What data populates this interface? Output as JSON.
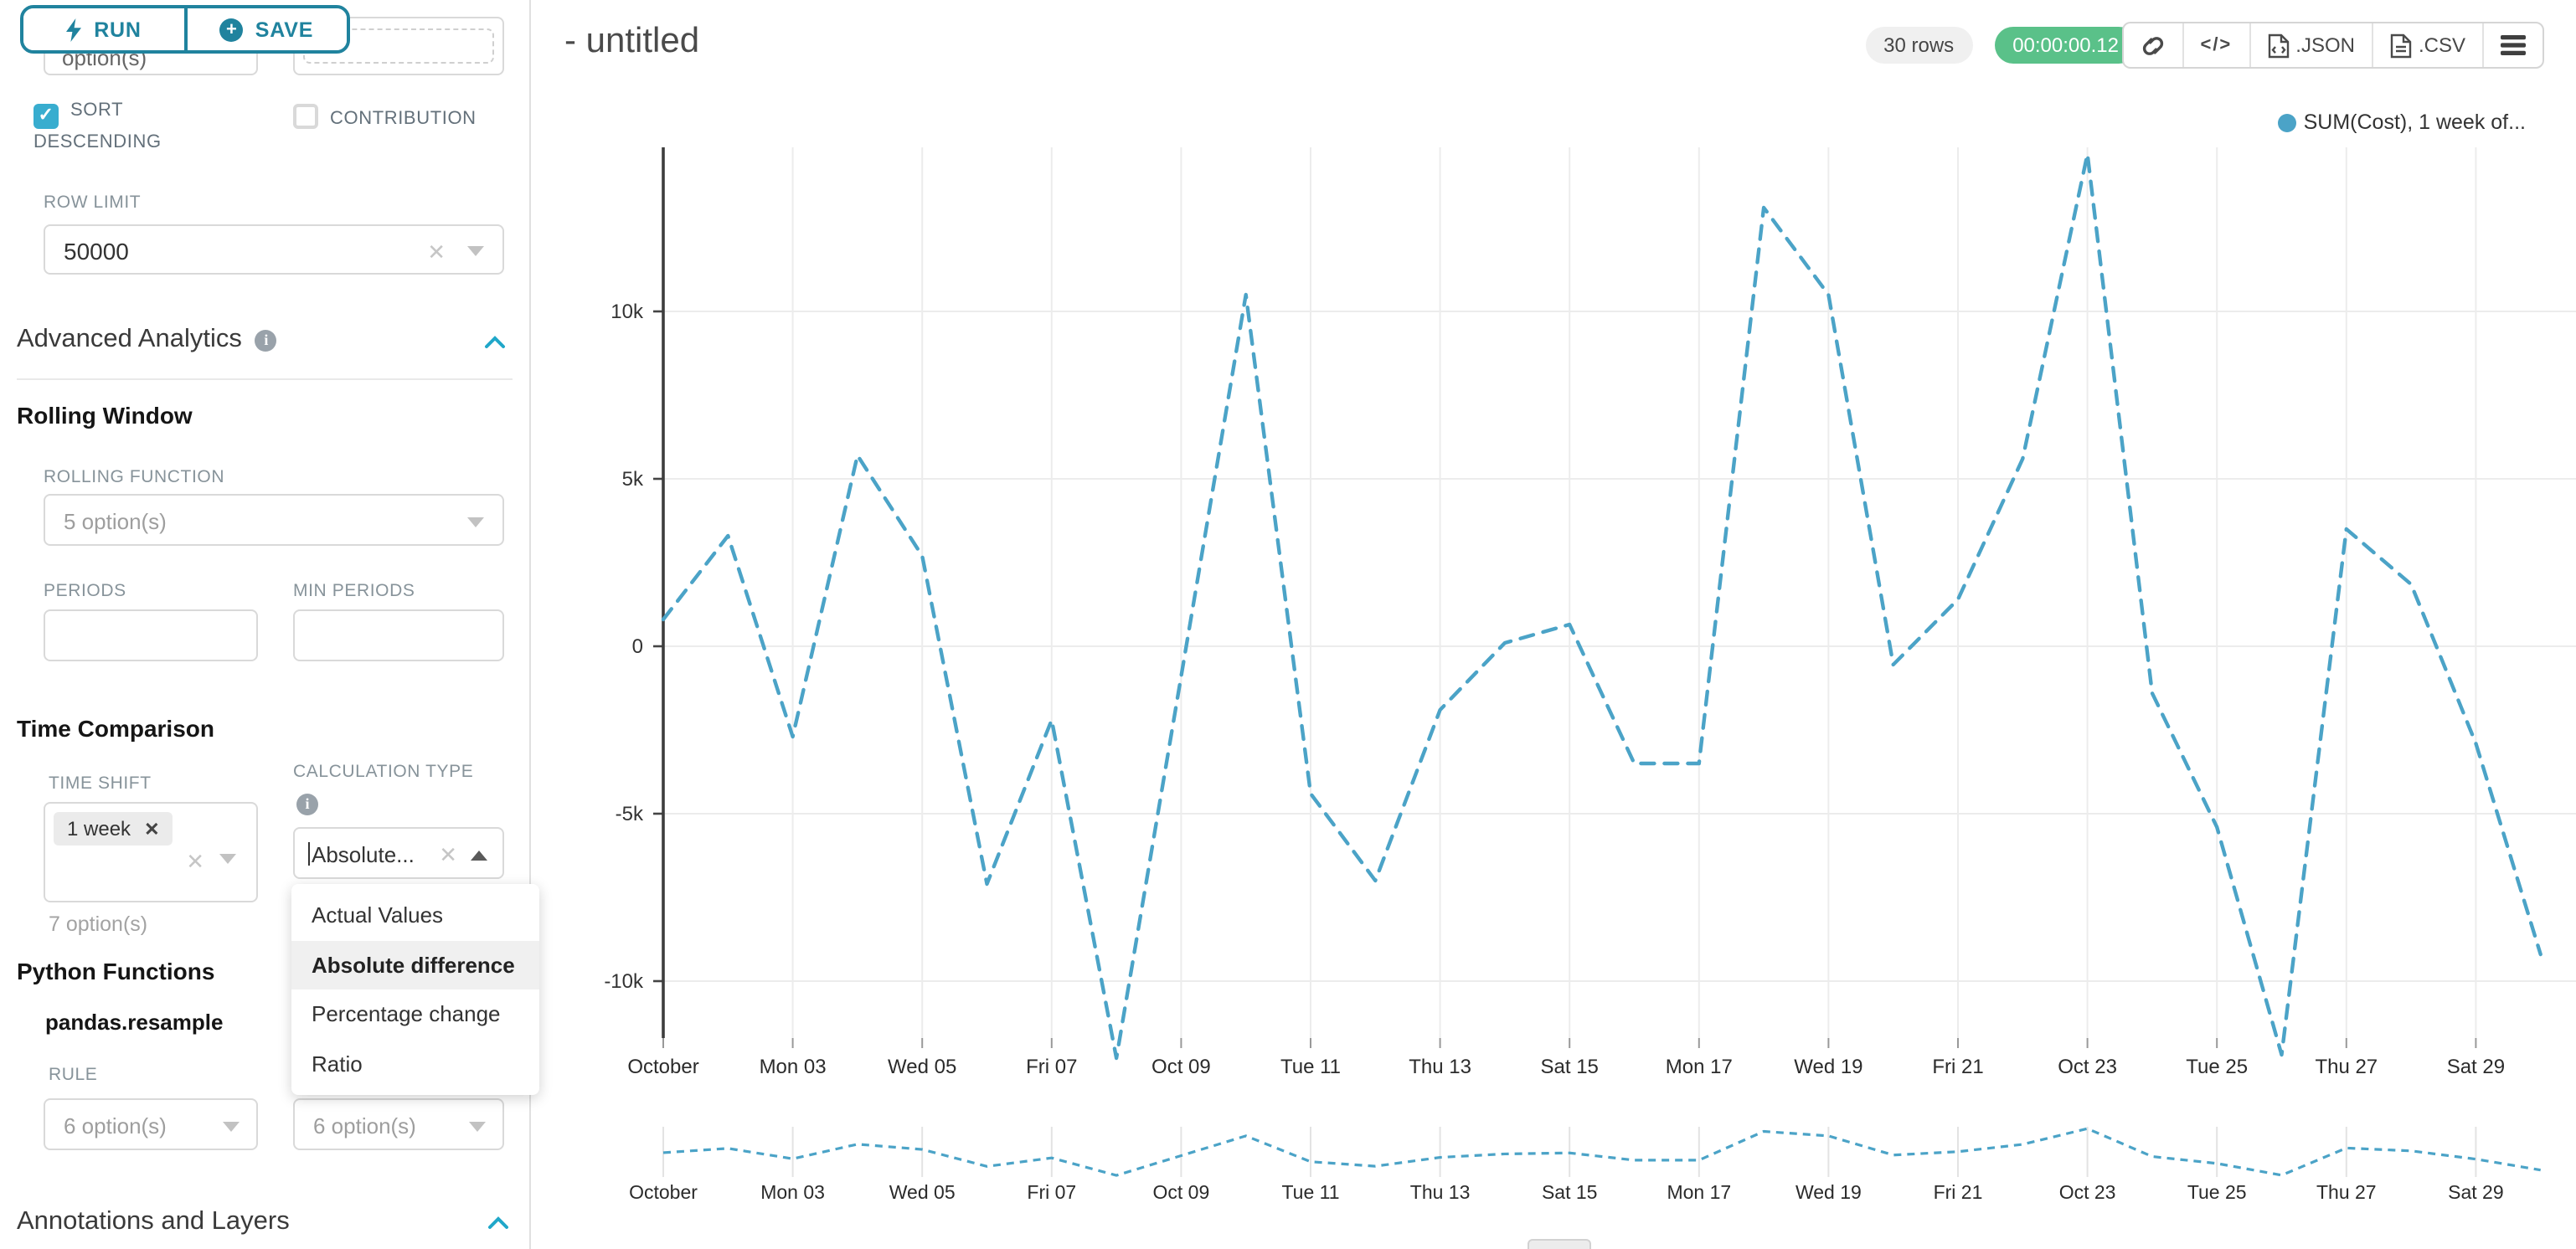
{
  "accent_color": "#20a7c9",
  "run_save": {
    "run_label": "RUN",
    "save_label": "SAVE"
  },
  "top_fields": {
    "left_partial_value": "option(s)"
  },
  "checkboxes": {
    "sort_descending_label": "SORT DESCENDING",
    "contribution_label": "CONTRIBUTION"
  },
  "row_limit": {
    "label": "ROW LIMIT",
    "value": "50000"
  },
  "advanced_analytics": {
    "title": "Advanced Analytics"
  },
  "rolling_window": {
    "title": "Rolling Window",
    "rolling_function_label": "ROLLING FUNCTION",
    "rolling_function_placeholder": "5 option(s)",
    "periods_label": "PERIODS",
    "min_periods_label": "MIN PERIODS"
  },
  "time_comparison": {
    "title": "Time Comparison",
    "time_shift_label": "TIME SHIFT",
    "time_shift_tag": "1 week",
    "time_shift_hint": "7 option(s)",
    "calculation_type_label": "CALCULATION TYPE",
    "calculation_type_value": "Absolute...",
    "options": [
      "Actual Values",
      "Absolute difference",
      "Percentage change",
      "Ratio"
    ],
    "selected_option": "Absolute difference"
  },
  "python_functions": {
    "title": "Python Functions",
    "function_name": "pandas.resample",
    "rule_label": "RULE",
    "rule_placeholder": "6 option(s)",
    "method_placeholder": "6 option(s)"
  },
  "annotations": {
    "title": "Annotations and Layers"
  },
  "header": {
    "title": "- untitled",
    "rows_badge": "30 rows",
    "timer_badge": "00:00:00.12",
    "json_label": ".JSON",
    "csv_label": ".CSV"
  },
  "chart_data": {
    "type": "line",
    "line_style": "dashed",
    "title": "",
    "legend": {
      "label": "SUM(Cost), 1 week of...",
      "position": "top-right"
    },
    "series": [
      {
        "name": "SUM(Cost), 1 week offset",
        "color": "#4BA3C7",
        "x_days": [
          1,
          2,
          3,
          4,
          5,
          6,
          7,
          8,
          9,
          10,
          11,
          12,
          13,
          14,
          15,
          16,
          17,
          18,
          19,
          20,
          21,
          22,
          23,
          24,
          25,
          26,
          27,
          28,
          29,
          30
        ],
        "values": [
          800,
          3300,
          -2700,
          5700,
          2700,
          -7100,
          -2200,
          -12300,
          -900,
          10500,
          -4400,
          -7000,
          -1900,
          100,
          650,
          -3500,
          -3500,
          13100,
          10500,
          -550,
          1400,
          5600,
          14700,
          -1400,
          -5400,
          -12200,
          3500,
          1850,
          -2900,
          -9200
        ]
      }
    ],
    "x_axis": {
      "tick_labels": [
        "October",
        "Mon 03",
        "Wed 05",
        "Fri 07",
        "Oct 09",
        "Tue 11",
        "Thu 13",
        "Sat 15",
        "Mon 17",
        "Wed 19",
        "Fri 21",
        "Oct 23",
        "Tue 25",
        "Thu 27",
        "Sat 29"
      ],
      "tick_days": [
        1,
        3,
        5,
        7,
        9,
        11,
        13,
        15,
        17,
        19,
        21,
        23,
        25,
        27,
        29
      ]
    },
    "y_axis": {
      "tick_labels": [
        "10k",
        "5k",
        "0",
        "-5k",
        "-10k"
      ],
      "tick_values": [
        10000,
        5000,
        0,
        -5000,
        -10000
      ]
    },
    "ylim": [
      -12750,
      14800
    ],
    "grid": true,
    "has_mini_preview": true
  }
}
